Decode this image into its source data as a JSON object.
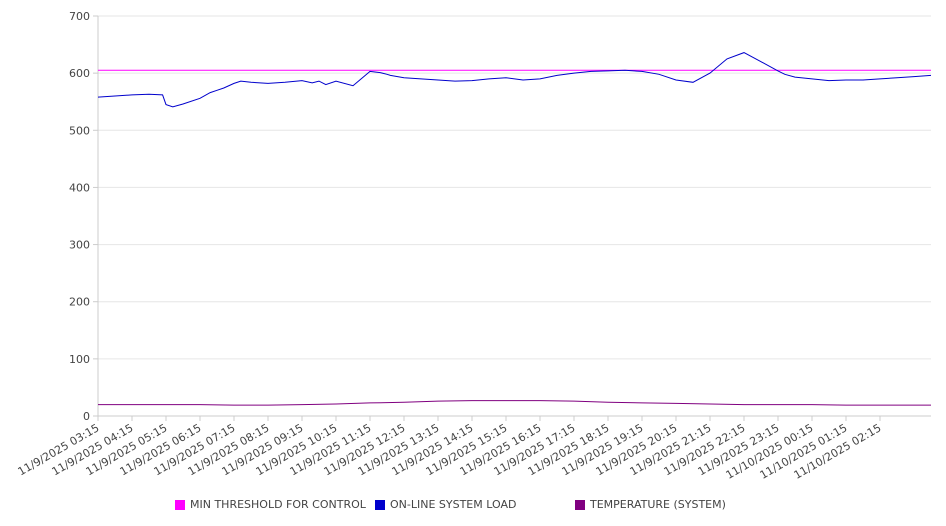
{
  "chart_data": {
    "type": "line",
    "ylim": [
      0,
      700
    ],
    "yticks": [
      0,
      100,
      200,
      300,
      400,
      500,
      600,
      700
    ],
    "categories": [
      "11/9/2025 03:15",
      "11/9/2025 04:15",
      "11/9/2025 05:15",
      "11/9/2025 06:15",
      "11/9/2025 07:15",
      "11/9/2025 08:15",
      "11/9/2025 09:15",
      "11/9/2025 10:15",
      "11/9/2025 11:15",
      "11/9/2025 12:15",
      "11/9/2025 13:15",
      "11/9/2025 14:15",
      "11/9/2025 15:15",
      "11/9/2025 16:15",
      "11/9/2025 17:15",
      "11/9/2025 18:15",
      "11/9/2025 19:15",
      "11/9/2025 20:15",
      "11/9/2025 21:15",
      "11/9/2025 22:15",
      "11/9/2025 23:15",
      "11/10/2025 00:15",
      "11/10/2025 01:15",
      "11/10/2025 02:15"
    ],
    "grid": true,
    "legend_position": "bottom",
    "series": [
      {
        "name": "MIN THRESHOLD FOR CONTROL",
        "color": "#ff00ff",
        "x": [
          0,
          24.5
        ],
        "values": [
          605,
          605
        ]
      },
      {
        "name": "ON-LINE SYSTEM LOAD",
        "color": "#0000cc",
        "x": [
          0,
          0.5,
          1.0,
          1.5,
          1.9,
          2.0,
          2.2,
          2.5,
          3.0,
          3.3,
          3.5,
          3.7,
          4.0,
          4.2,
          4.5,
          5.0,
          5.5,
          6.0,
          6.3,
          6.5,
          6.7,
          7.0,
          7.5,
          7.7,
          8.0,
          8.3,
          8.5,
          8.6,
          9.0,
          9.5,
          10.0,
          10.5,
          11.0,
          11.5,
          12.0,
          12.5,
          13.0,
          13.5,
          14.0,
          14.5,
          15.0,
          15.5,
          16.0,
          16.5,
          17.0,
          17.5,
          18.0,
          18.5,
          19.0,
          19.5,
          20.0,
          20.2,
          20.5,
          21.0,
          21.5,
          22.0,
          22.5,
          23.0,
          23.5,
          24.0,
          24.5
        ],
        "values": [
          558,
          560,
          562,
          563,
          562,
          545,
          541,
          546,
          556,
          566,
          570,
          574,
          582,
          586,
          584,
          582,
          584,
          587,
          583,
          586,
          580,
          586,
          578,
          588,
          603,
          601,
          598,
          596,
          592,
          590,
          588,
          586,
          587,
          590,
          592,
          588,
          590,
          596,
          600,
          603,
          604,
          605,
          603,
          598,
          588,
          584,
          600,
          625,
          636,
          620,
          604,
          598,
          593,
          590,
          587,
          588,
          588,
          590,
          592,
          594,
          596
        ]
      },
      {
        "name": "TEMPERATURE (SYSTEM)",
        "color": "#800080",
        "x": [
          0,
          1,
          2,
          3,
          4,
          5,
          6,
          7,
          8,
          9,
          10,
          11,
          12,
          13,
          14,
          15,
          16,
          17,
          18,
          19,
          20,
          21,
          22,
          23,
          24,
          24.5
        ],
        "values": [
          20,
          20,
          20,
          20,
          19,
          19,
          20,
          21,
          23,
          24,
          26,
          27,
          27,
          27,
          26,
          24,
          23,
          22,
          21,
          20,
          20,
          20,
          19,
          19,
          19,
          19
        ]
      }
    ]
  }
}
